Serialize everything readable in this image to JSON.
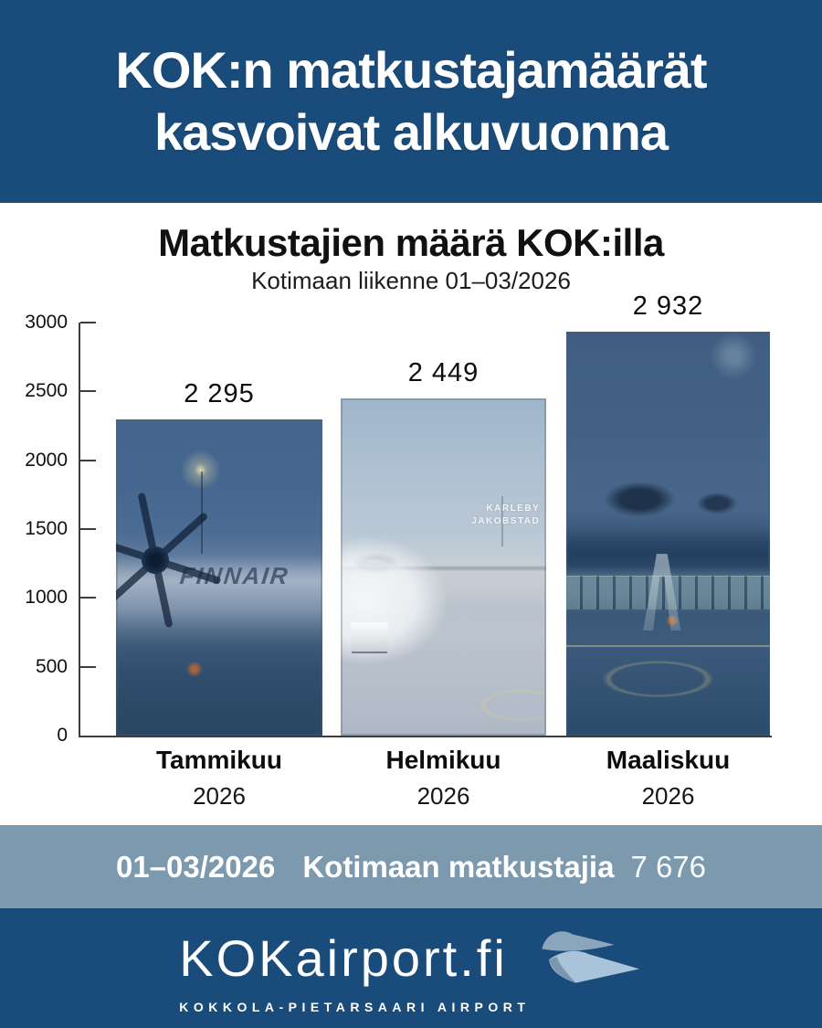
{
  "header": {
    "title_line1": "KOK:n matkustajamäärät",
    "title_line2": "kasvoivat alkuvuonna"
  },
  "chart": {
    "title": "Matkustajien määrä KOK:illa",
    "subtitle": "Kotimaan liikenne 01–03/2026",
    "y_ticks": [
      "3000",
      "2500",
      "2000",
      "1500",
      "1000",
      "500",
      "0"
    ],
    "bars": [
      {
        "month": "Tammikuu",
        "year": "2026",
        "display": "2 295",
        "photo": "finnair-atr-aircraft-photo",
        "photo_text": "FINNAIR"
      },
      {
        "month": "Helmikuu",
        "year": "2026",
        "display": "2 449",
        "photo": "aircraft-nose-terminal-photo",
        "sign_line1": "KARLEBY",
        "sign_line2": "JAKOBSTAD"
      },
      {
        "month": "Maaliskuu",
        "year": "2026",
        "display": "2 932",
        "photo": "terminal-apron-dusk-photo"
      }
    ]
  },
  "chart_data": {
    "type": "bar",
    "categories": [
      "Tammikuu 2026",
      "Helmikuu 2026",
      "Maaliskuu 2026"
    ],
    "values": [
      2295,
      2449,
      2932
    ],
    "bar_labels": [
      "2 295",
      "2 449",
      "2 932"
    ],
    "title": "Matkustajien määrä KOK:illa",
    "subtitle": "Kotimaan liikenne 01–03/2026",
    "xlabel": "",
    "ylabel": "",
    "ylim": [
      0,
      3000
    ],
    "ytick_step": 500,
    "grid": false,
    "legend": false
  },
  "summary_band": {
    "period": "01–03/2026",
    "label": "Kotimaan matkustajia",
    "value": "7 676"
  },
  "footer": {
    "logo_text": "KOKairport.fi",
    "tagline": "KOKKOLA-PIETARSAARI AIRPORT",
    "icon": "paper-plane-icon"
  },
  "colors": {
    "navy": "#1a4c7b",
    "band": "#7d99ae",
    "bar1_overlay": "#3d6089",
    "bar2_overlay": "#b7c6d4",
    "bar3_overlay": "#3a5878"
  }
}
